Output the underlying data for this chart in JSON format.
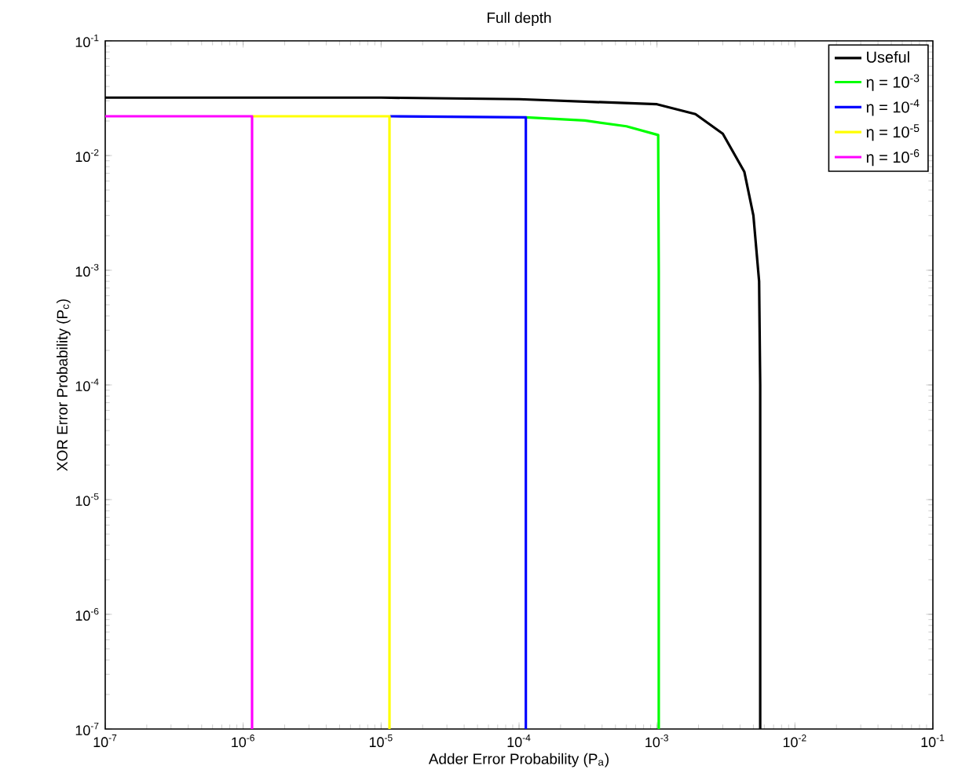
{
  "chart_data": {
    "type": "line",
    "title": "Full depth",
    "xlabel": "Adder Error Probability (P$_{a}$)",
    "ylabel": "XOR Error Probability (P$_{c}$)",
    "log": "xy",
    "legend": "top right",
    "xlim": [
      1e-07,
      0.1
    ],
    "ylim": [
      1e-07,
      0.1
    ],
    "xticks": [
      {
        "value": 1e-07,
        "label": "10$^{-7}$"
      },
      {
        "value": 1e-06,
        "label": "10$^{-6}$"
      },
      {
        "value": 1e-05,
        "label": "10$^{-5}$"
      },
      {
        "value": 0.0001,
        "label": "10$^{-4}$"
      },
      {
        "value": 0.001,
        "label": "10$^{-3}$"
      },
      {
        "value": 0.01,
        "label": "10$^{-2}$"
      },
      {
        "value": 0.1,
        "label": "10$^{-1}$"
      }
    ],
    "yticks": [
      {
        "value": 1e-07,
        "label": "10$^{-7}$"
      },
      {
        "value": 1e-06,
        "label": "10$^{-6}$"
      },
      {
        "value": 1e-05,
        "label": "10$^{-5}$"
      },
      {
        "value": 0.0001,
        "label": "10$^{-4}$"
      },
      {
        "value": 0.001,
        "label": "10$^{-3}$"
      },
      {
        "value": 0.01,
        "label": "10$^{-2}$"
      },
      {
        "value": 0.1,
        "label": "10$^{-1}$"
      }
    ],
    "series": [
      {
        "name": "Useful",
        "color": "#000000",
        "x": [
          1e-07,
          1e-05,
          0.0001,
          0.001,
          0.0019,
          0.003,
          0.0043,
          0.005,
          0.0055,
          0.0056,
          0.0056
        ],
        "values": [
          0.032,
          0.032,
          0.031,
          0.028,
          0.023,
          0.0155,
          0.0072,
          0.003,
          0.0008,
          0.0001,
          1e-07
        ]
      },
      {
        "name": "η = 10$^{-3}$",
        "color": "#00ff00",
        "x": [
          0.000112,
          0.0003,
          0.0006,
          0.00102,
          0.00103,
          0.00103
        ],
        "values": [
          0.0215,
          0.0202,
          0.018,
          0.0151,
          0.001,
          1e-07
        ]
      },
      {
        "name": "η = 10$^{-4}$",
        "color": "#0000ff",
        "x": [
          1.16e-05,
          0.000112,
          0.000112
        ],
        "values": [
          0.022,
          0.0215,
          1e-07
        ]
      },
      {
        "name": "η = 10$^{-5}$",
        "color": "#ffff00",
        "x": [
          1.16e-06,
          1.15e-05,
          1.15e-05
        ],
        "values": [
          0.022,
          0.022,
          1e-07
        ]
      },
      {
        "name": "η = 10$^{-6}$",
        "color": "#ff00ff",
        "x": [
          1e-07,
          1.16e-06,
          1.16e-06
        ],
        "values": [
          0.022,
          0.022,
          1e-07
        ]
      }
    ]
  }
}
